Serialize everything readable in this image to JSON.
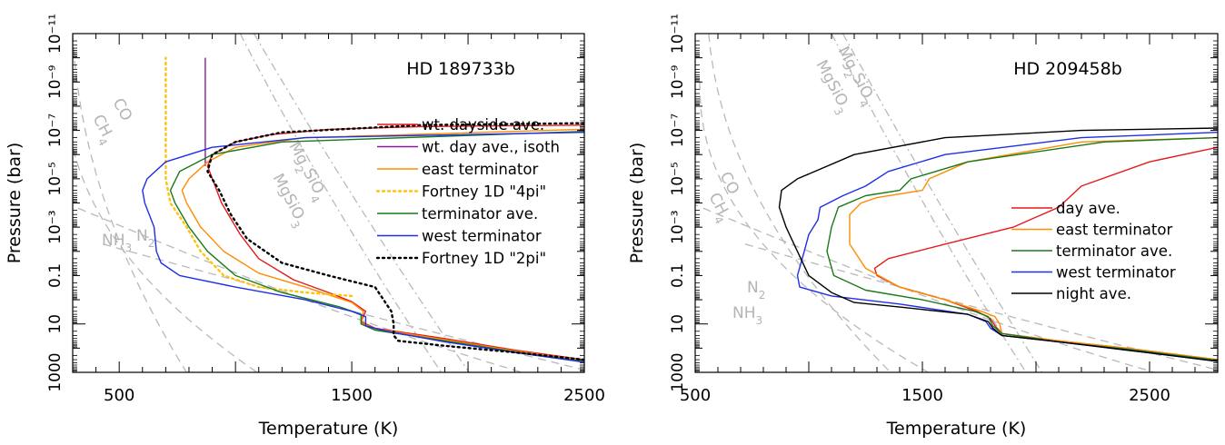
{
  "chart_data": [
    {
      "type": "line",
      "title": "HD 189733b",
      "xlabel": "Temperature (K)",
      "ylabel": "Pressure (bar)",
      "xlim": [
        300,
        2500
      ],
      "ylim": [
        1000,
        1e-11
      ],
      "yscale": "log",
      "x_ticks": [
        "500",
        "1500",
        "2500"
      ],
      "y_ticks": [
        "1000",
        "10",
        "0.1",
        "10⁻³",
        "10⁻⁵",
        "10⁻⁷",
        "10⁻⁹",
        "10⁻¹¹"
      ],
      "legend_position": "right",
      "series": [
        {
          "name": "wt. dayside ave.",
          "color": "#e41a1c",
          "dash": "solid",
          "points": [
            [
              2500,
              300
            ],
            [
              2200,
              120
            ],
            [
              1900,
              40
            ],
            [
              1600,
              15
            ],
            [
              1540,
              8
            ],
            [
              1560,
              3
            ],
            [
              1500,
              1.2
            ],
            [
              1400,
              0.5
            ],
            [
              1250,
              0.15
            ],
            [
              1100,
              0.02
            ],
            [
              1020,
              0.002
            ],
            [
              940,
              0.0001
            ],
            [
              880,
              3e-06
            ],
            [
              900,
              1e-06
            ],
            [
              1000,
              3e-07
            ],
            [
              1150,
              1.5e-07
            ],
            [
              1400,
              9e-08
            ],
            [
              1800,
              7e-08
            ],
            [
              2500,
              6e-08
            ]
          ]
        },
        {
          "name": "wt. day ave., isoth",
          "color": "#8a1a9b",
          "dash": "solid",
          "points": [
            [
              870,
              3e-06
            ],
            [
              870,
              1e-08
            ],
            [
              870,
              1e-10
            ]
          ]
        },
        {
          "name": "east terminator",
          "color": "#ff8c00",
          "dash": "solid",
          "points": [
            [
              2500,
              320
            ],
            [
              2200,
              130
            ],
            [
              1900,
              45
            ],
            [
              1600,
              16
            ],
            [
              1540,
              9
            ],
            [
              1550,
              3
            ],
            [
              1500,
              1.3
            ],
            [
              1300,
              0.3
            ],
            [
              1100,
              0.08
            ],
            [
              950,
              0.01
            ],
            [
              850,
              0.001
            ],
            [
              790,
              0.0001
            ],
            [
              770,
              3e-05
            ],
            [
              800,
              1e-05
            ],
            [
              880,
              2e-06
            ],
            [
              1000,
              5e-07
            ],
            [
              1300,
              2e-07
            ],
            [
              2500,
              9e-08
            ]
          ]
        },
        {
          "name": "Fortney 1D \"4pi\"",
          "color": "#ffc20e",
          "dash": "dot",
          "points": [
            [
              1500,
              0.7
            ],
            [
              1300,
              0.5
            ],
            [
              1100,
              0.3
            ],
            [
              950,
              0.1
            ],
            [
              850,
              0.01
            ],
            [
              790,
              0.001
            ],
            [
              720,
              0.0001
            ],
            [
              700,
              1e-05
            ],
            [
              700,
              1e-07
            ],
            [
              700,
              1e-10
            ]
          ]
        },
        {
          "name": "terminator ave.",
          "color": "#1a7a1a",
          "dash": "solid",
          "points": [
            [
              2500,
              350
            ],
            [
              2200,
              140
            ],
            [
              1900,
              50
            ],
            [
              1600,
              18
            ],
            [
              1540,
              10
            ],
            [
              1540,
              4
            ],
            [
              1450,
              2
            ],
            [
              1200,
              0.5
            ],
            [
              1000,
              0.1
            ],
            [
              880,
              0.01
            ],
            [
              800,
              0.001
            ],
            [
              740,
              0.0001
            ],
            [
              720,
              3e-05
            ],
            [
              760,
              5e-06
            ],
            [
              900,
              1e-06
            ],
            [
              1200,
              3e-07
            ],
            [
              2500,
              1.1e-07
            ]
          ]
        },
        {
          "name": "west terminator",
          "color": "#1f2ee8",
          "dash": "solid",
          "points": [
            [
              2500,
              380
            ],
            [
              2200,
              150
            ],
            [
              1900,
              55
            ],
            [
              1650,
              20
            ],
            [
              1560,
              12
            ],
            [
              1560,
              5
            ],
            [
              1500,
              3
            ],
            [
              1300,
              1
            ],
            [
              1000,
              0.3
            ],
            [
              760,
              0.1
            ],
            [
              680,
              0.03
            ],
            [
              660,
              0.01
            ],
            [
              650,
              0.001
            ],
            [
              610,
              0.0001
            ],
            [
              600,
              3e-05
            ],
            [
              620,
              1e-05
            ],
            [
              700,
              2e-06
            ],
            [
              900,
              5e-07
            ],
            [
              1300,
              2e-07
            ],
            [
              2500,
              1.2e-07
            ]
          ]
        },
        {
          "name": "Fortney 1D \"2pi\"",
          "color": "#000000",
          "dash": "dot",
          "points": [
            [
              2500,
              300
            ],
            [
              2200,
              150
            ],
            [
              1900,
              80
            ],
            [
              1700,
              50
            ],
            [
              1680,
              30
            ],
            [
              1680,
              10
            ],
            [
              1670,
              3
            ],
            [
              1600,
              0.3
            ],
            [
              1400,
              0.1
            ],
            [
              1200,
              0.03
            ],
            [
              1050,
              0.003
            ],
            [
              980,
              0.0003
            ],
            [
              930,
              3e-05
            ],
            [
              880,
              5e-06
            ],
            [
              900,
              1e-06
            ],
            [
              1000,
              3e-07
            ],
            [
              1200,
              1.2e-07
            ],
            [
              1800,
              6e-08
            ],
            [
              2500,
              5e-08
            ]
          ]
        }
      ],
      "reference_curves": [
        {
          "name": "CO",
          "type": "dashed",
          "label": "CO"
        },
        {
          "name": "CH4",
          "type": "dashed",
          "label": "CH4"
        },
        {
          "name": "NH3",
          "type": "dashed",
          "label": "NH3"
        },
        {
          "name": "N2",
          "type": "dashed",
          "label": "N2"
        },
        {
          "name": "Mg2SiO4",
          "type": "dashdot",
          "label": "Mg2SiO4"
        },
        {
          "name": "MgSiO3",
          "type": "dashdot",
          "label": "MgSiO3"
        }
      ]
    },
    {
      "type": "line",
      "title": "HD 209458b",
      "xlabel": "Temperature (K)",
      "ylabel": "Pressure (bar)",
      "xlim": [
        500,
        2800
      ],
      "ylim": [
        1000,
        1e-11
      ],
      "yscale": "log",
      "x_ticks": [
        "500",
        "1500",
        "2500"
      ],
      "y_ticks": [
        "1000",
        "10",
        "0.1",
        "10⁻³",
        "10⁻⁵",
        "10⁻⁷",
        "10⁻⁹",
        "10⁻¹¹"
      ],
      "legend_position": "right",
      "series": [
        {
          "name": "day ave.",
          "color": "#e41a1c",
          "dash": "solid",
          "points": [
            [
              2800,
              300
            ],
            [
              2400,
              100
            ],
            [
              2100,
              50
            ],
            [
              1850,
              25
            ],
            [
              1820,
              12
            ],
            [
              1800,
              6
            ],
            [
              1740,
              3
            ],
            [
              1600,
              1
            ],
            [
              1400,
              0.3
            ],
            [
              1300,
              0.1
            ],
            [
              1290,
              0.05
            ],
            [
              1350,
              0.02
            ],
            [
              1600,
              0.005
            ],
            [
              1900,
              0.001
            ],
            [
              2100,
              0.00015
            ],
            [
              2200,
              2e-05
            ],
            [
              2500,
              2e-06
            ],
            [
              2800,
              5e-07
            ]
          ]
        },
        {
          "name": "east terminator",
          "color": "#ff8c00",
          "dash": "solid",
          "points": [
            [
              2800,
              300
            ],
            [
              2400,
              100
            ],
            [
              2100,
              50
            ],
            [
              1850,
              25
            ],
            [
              1840,
              10
            ],
            [
              1820,
              5
            ],
            [
              1760,
              3
            ],
            [
              1600,
              1
            ],
            [
              1400,
              0.3
            ],
            [
              1250,
              0.05
            ],
            [
              1180,
              0.005
            ],
            [
              1180,
              0.0003
            ],
            [
              1230,
              0.0001
            ],
            [
              1300,
              6e-05
            ],
            [
              1500,
              3e-05
            ],
            [
              1530,
              1e-05
            ],
            [
              1700,
              2e-06
            ],
            [
              2200,
              3e-07
            ],
            [
              2800,
              2e-07
            ]
          ]
        },
        {
          "name": "terminator ave.",
          "color": "#1a7a1a",
          "dash": "solid",
          "points": [
            [
              2800,
              320
            ],
            [
              2400,
              110
            ],
            [
              2100,
              55
            ],
            [
              1850,
              25
            ],
            [
              1810,
              12
            ],
            [
              1790,
              5
            ],
            [
              1730,
              3
            ],
            [
              1500,
              1
            ],
            [
              1250,
              0.4
            ],
            [
              1110,
              0.1
            ],
            [
              1080,
              0.01
            ],
            [
              1100,
              0.001
            ],
            [
              1130,
              0.00015
            ],
            [
              1250,
              5e-05
            ],
            [
              1400,
              3e-05
            ],
            [
              1450,
              1e-05
            ],
            [
              1700,
              2e-06
            ],
            [
              2300,
              3e-07
            ],
            [
              2800,
              2e-07
            ]
          ]
        },
        {
          "name": "west terminator",
          "color": "#1f2ee8",
          "dash": "solid",
          "points": [
            [
              2800,
              350
            ],
            [
              2400,
              120
            ],
            [
              2100,
              55
            ],
            [
              1850,
              30
            ],
            [
              1800,
              15
            ],
            [
              1780,
              8
            ],
            [
              1700,
              4
            ],
            [
              1400,
              1.5
            ],
            [
              1100,
              0.7
            ],
            [
              960,
              0.3
            ],
            [
              950,
              0.1
            ],
            [
              980,
              0.01
            ],
            [
              1000,
              0.002
            ],
            [
              1040,
              0.0005
            ],
            [
              1050,
              0.00015
            ],
            [
              1150,
              5e-05
            ],
            [
              1250,
              2e-05
            ],
            [
              1350,
              5e-06
            ],
            [
              1600,
              1e-06
            ],
            [
              2200,
              2e-07
            ],
            [
              2800,
              1.2e-07
            ]
          ]
        },
        {
          "name": "night ave.",
          "color": "#000000",
          "dash": "solid",
          "points": [
            [
              2800,
              350
            ],
            [
              2400,
              120
            ],
            [
              2100,
              55
            ],
            [
              1850,
              30
            ],
            [
              1810,
              15
            ],
            [
              1790,
              8
            ],
            [
              1700,
              4
            ],
            [
              1400,
              2
            ],
            [
              1200,
              1.3
            ],
            [
              1100,
              0.5
            ],
            [
              1000,
              0.1
            ],
            [
              950,
              0.01
            ],
            [
              900,
              0.001
            ],
            [
              870,
              0.00015
            ],
            [
              880,
              3e-05
            ],
            [
              950,
              1e-05
            ],
            [
              1200,
              1e-06
            ],
            [
              1600,
              2e-07
            ],
            [
              2200,
              1e-07
            ],
            [
              2800,
              8e-08
            ]
          ]
        }
      ],
      "reference_curves": [
        {
          "name": "CO",
          "type": "dashed",
          "label": "CO"
        },
        {
          "name": "CH4",
          "type": "dashed",
          "label": "CH4"
        },
        {
          "name": "N2",
          "type": "dashed",
          "label": "N2"
        },
        {
          "name": "NH3",
          "type": "dashed",
          "label": "NH3"
        },
        {
          "name": "Mg2SiO4",
          "type": "dashdot",
          "label": "Mg2SiO4"
        },
        {
          "name": "MgSiO3",
          "type": "dashdot",
          "label": "MgSiO3"
        }
      ]
    }
  ]
}
